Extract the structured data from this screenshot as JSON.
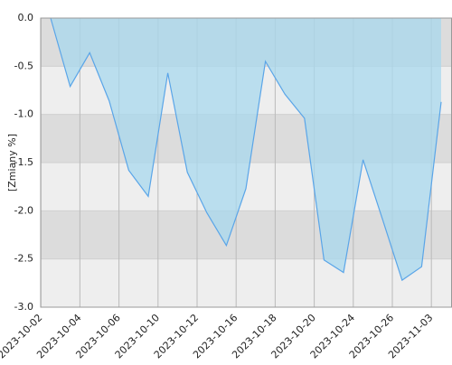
{
  "chart_data": {
    "type": "area",
    "y_label": "[Zmiany %]",
    "categories": [
      "2023-10-02",
      null,
      "2023-10-04",
      null,
      "2023-10-06",
      null,
      "2023-10-10",
      null,
      "2023-10-12",
      null,
      "2023-10-16",
      null,
      "2023-10-18",
      null,
      "2023-10-20",
      null,
      "2023-10-24",
      null,
      "2023-10-26",
      null,
      "2023-11-03"
    ],
    "values": [
      0.0,
      -0.71,
      -0.36,
      -0.86,
      -1.58,
      -1.85,
      -0.57,
      -1.6,
      -2.02,
      -2.36,
      -1.77,
      -0.45,
      -0.79,
      -1.04,
      -2.51,
      -2.64,
      -1.47,
      -2.09,
      -2.72,
      -2.58,
      -0.87
    ],
    "color": "#5aa5e8",
    "fill": "#a8d8ee",
    "ylim": [
      -3.0,
      0.0
    ],
    "yticks": [
      {
        "value": 0,
        "label": "0.0"
      },
      {
        "value": -0.5,
        "label": "-0.5"
      },
      {
        "value": -1,
        "label": "-1.0"
      },
      {
        "value": -1.5,
        "label": "-1.5"
      },
      {
        "value": -2,
        "label": "-2.0"
      },
      {
        "value": -2.5,
        "label": "-2.5"
      },
      {
        "value": -3,
        "label": "-3.0"
      }
    ],
    "grid": true
  }
}
